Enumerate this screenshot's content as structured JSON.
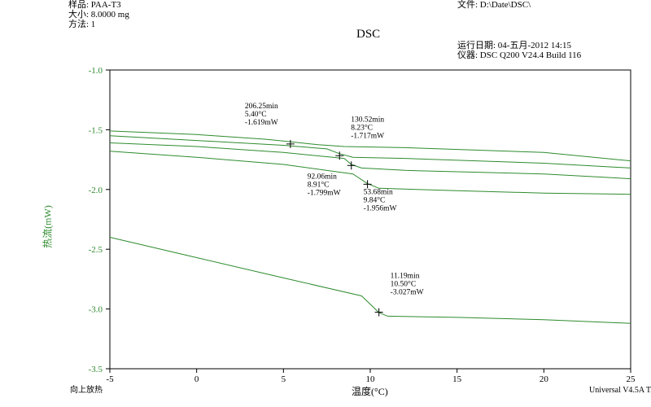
{
  "header": {
    "sample_label": "样品: PAA-T3",
    "size_label": "大小: 8.0000 mg",
    "method_label": "方法: 1",
    "title": "DSC",
    "file_label": "文件: D:\\Date\\DSC\\",
    "run_date_label": "运行日期: 04-五月-2012 14:15",
    "instrument_label": "仪器: DSC Q200 V24.4 Build 116"
  },
  "footer": {
    "left_note": "向上放热",
    "right_note": "Universal V4.5A TA"
  },
  "colors": {
    "series": "#2e8b2e",
    "axis": "#000000",
    "ylabel": "#2e8b2e"
  },
  "chart_data": {
    "type": "line",
    "title": "DSC",
    "xlabel": "温度(°C)",
    "ylabel": "热流(mW)",
    "xlim": [
      -5,
      25
    ],
    "ylim": [
      -3.5,
      -1.0
    ],
    "xticks": [
      -5,
      0,
      5,
      10,
      15,
      20,
      25
    ],
    "yticks": [
      -1.0,
      -1.5,
      -2.0,
      -2.5,
      -3.0,
      -3.5
    ],
    "grid": false,
    "series": [
      {
        "x": [
          -5,
          0,
          4,
          5.4,
          7,
          8.5,
          12,
          20,
          25
        ],
        "y": [
          -1.51,
          -1.54,
          -1.58,
          -1.6,
          -1.625,
          -1.64,
          -1.65,
          -1.69,
          -1.76
        ]
      },
      {
        "x": [
          -5,
          0,
          5,
          7.5,
          8.23,
          9,
          12,
          20,
          25
        ],
        "y": [
          -1.55,
          -1.59,
          -1.63,
          -1.66,
          -1.7,
          -1.73,
          -1.74,
          -1.78,
          -1.82
        ]
      },
      {
        "x": [
          -5,
          0,
          5,
          8.5,
          8.91,
          9.5,
          12,
          20,
          25
        ],
        "y": [
          -1.61,
          -1.64,
          -1.69,
          -1.74,
          -1.79,
          -1.82,
          -1.84,
          -1.87,
          -1.91
        ]
      },
      {
        "x": [
          -5,
          0,
          5,
          9.0,
          9.84,
          10.5,
          15,
          20,
          25
        ],
        "y": [
          -1.68,
          -1.73,
          -1.79,
          -1.87,
          -1.95,
          -1.99,
          -2.01,
          -2.03,
          -2.04
        ]
      },
      {
        "x": [
          -5,
          0,
          5,
          9.5,
          10.5,
          11,
          15,
          20,
          25
        ],
        "y": [
          -2.4,
          -2.57,
          -2.74,
          -2.89,
          -3.03,
          -3.06,
          -3.07,
          -3.09,
          -3.12
        ]
      }
    ],
    "annotations": [
      {
        "x": 5.4,
        "y": -1.619,
        "lines": [
          "206.25min",
          "5.40°C",
          "-1.619mW"
        ],
        "pos": "above-left"
      },
      {
        "x": 8.23,
        "y": -1.717,
        "lines": [
          "130.52min",
          "8.23°C",
          "-1.717mW"
        ],
        "pos": "above-right"
      },
      {
        "x": 8.91,
        "y": -1.799,
        "lines": [
          "92.06min",
          "8.91°C",
          "-1.799mW"
        ],
        "pos": "below-left"
      },
      {
        "x": 9.84,
        "y": -1.956,
        "lines": [
          "53.68min",
          "9.84°C",
          "-1.956mW"
        ],
        "pos": "below-right"
      },
      {
        "x": 10.5,
        "y": -3.027,
        "lines": [
          "11.19min",
          "10.50°C",
          "-3.027mW"
        ],
        "pos": "above-right"
      }
    ]
  }
}
